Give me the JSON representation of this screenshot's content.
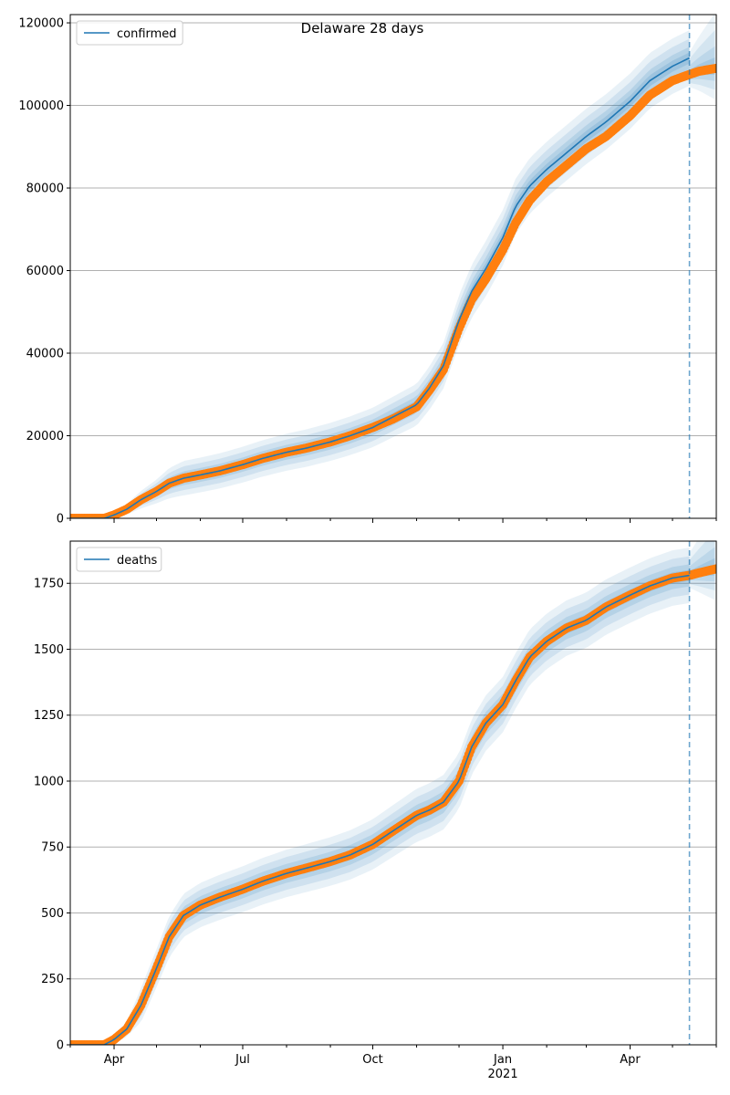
{
  "figure": {
    "title": "Delaware 28 days"
  },
  "chart_data": [
    {
      "type": "line",
      "legend": {
        "label": "confirmed",
        "placement": "upper-left"
      },
      "x_type": "date",
      "xlim": [
        "2020-03-01",
        "2021-06-01"
      ],
      "ylim": [
        0,
        122000
      ],
      "yticks": [
        0,
        20000,
        40000,
        60000,
        80000,
        100000,
        120000
      ],
      "grid": "horizontal",
      "forecast_start": "2021-05-13",
      "observed": {
        "x": [
          "2020-03-01",
          "2020-03-25",
          "2020-04-01",
          "2020-04-10",
          "2020-04-20",
          "2020-05-01",
          "2020-05-10",
          "2020-05-20",
          "2020-06-01",
          "2020-06-15",
          "2020-07-01",
          "2020-07-15",
          "2020-08-01",
          "2020-08-15",
          "2020-09-01",
          "2020-09-15",
          "2020-10-01",
          "2020-10-15",
          "2020-11-01",
          "2020-11-10",
          "2020-11-20",
          "2020-12-01",
          "2020-12-10",
          "2020-12-20",
          "2021-01-01",
          "2021-01-10",
          "2021-01-20",
          "2021-02-01",
          "2021-02-15",
          "2021-03-01",
          "2021-03-15",
          "2021-04-01",
          "2021-04-15",
          "2021-05-01",
          "2021-05-13",
          "2021-05-20",
          "2021-06-01"
        ],
        "y": [
          0,
          0,
          800,
          2200,
          4500,
          6500,
          8500,
          9700,
          10500,
          11500,
          13000,
          14500,
          16000,
          17000,
          18500,
          20000,
          22000,
          24000,
          27000,
          31000,
          36000,
          46000,
          53000,
          58000,
          65000,
          71500,
          77000,
          81500,
          85500,
          89500,
          92500,
          97500,
          102500,
          106000,
          107500,
          108300,
          109000
        ]
      },
      "series": [
        {
          "name": "confirmed",
          "color": "#1f77b4",
          "x": [
            "2020-03-01",
            "2020-03-25",
            "2020-04-01",
            "2020-04-10",
            "2020-04-20",
            "2020-05-01",
            "2020-05-10",
            "2020-05-20",
            "2020-06-01",
            "2020-06-15",
            "2020-07-01",
            "2020-07-15",
            "2020-08-01",
            "2020-08-15",
            "2020-09-01",
            "2020-09-15",
            "2020-10-01",
            "2020-10-15",
            "2020-11-01",
            "2020-11-10",
            "2020-11-20",
            "2020-12-01",
            "2020-12-10",
            "2020-12-20",
            "2021-01-01",
            "2021-01-10",
            "2021-01-20",
            "2021-02-01",
            "2021-02-15",
            "2021-03-01",
            "2021-03-15",
            "2021-04-01",
            "2021-04-15",
            "2021-05-01",
            "2021-05-13"
          ],
          "y": [
            0,
            0,
            800,
            2200,
            4500,
            6500,
            8500,
            9700,
            10500,
            11500,
            13000,
            14500,
            16000,
            17000,
            18500,
            20000,
            22000,
            24500,
            27500,
            31500,
            37000,
            48000,
            55000,
            60500,
            68000,
            75500,
            80500,
            84500,
            88500,
            92500,
            96000,
            101000,
            106000,
            109500,
            111500
          ]
        }
      ],
      "band_color": "#1f77b4"
    },
    {
      "type": "line",
      "legend": {
        "label": "deaths",
        "placement": "upper-left"
      },
      "x_type": "date",
      "xlim": [
        "2020-03-01",
        "2021-06-01"
      ],
      "ylim": [
        0,
        1910
      ],
      "yticks": [
        0,
        250,
        500,
        750,
        1000,
        1250,
        1500,
        1750
      ],
      "grid": "horizontal",
      "forecast_start": "2021-05-13",
      "xticks_major": [
        {
          "date": "2020-04-01",
          "label": "Apr"
        },
        {
          "date": "2020-07-01",
          "label": "Jul"
        },
        {
          "date": "2020-10-01",
          "label": "Oct"
        },
        {
          "date": "2021-01-01",
          "label": "Jan",
          "sublabel": "2021"
        },
        {
          "date": "2021-04-01",
          "label": "Apr"
        }
      ],
      "observed": {
        "x": [
          "2020-03-01",
          "2020-03-25",
          "2020-04-01",
          "2020-04-10",
          "2020-04-20",
          "2020-05-01",
          "2020-05-10",
          "2020-05-20",
          "2020-06-01",
          "2020-06-15",
          "2020-07-01",
          "2020-07-15",
          "2020-08-01",
          "2020-08-15",
          "2020-09-01",
          "2020-09-15",
          "2020-10-01",
          "2020-10-15",
          "2020-11-01",
          "2020-11-10",
          "2020-11-20",
          "2020-12-01",
          "2020-12-10",
          "2020-12-20",
          "2021-01-01",
          "2021-01-10",
          "2021-01-20",
          "2021-02-01",
          "2021-02-15",
          "2021-03-01",
          "2021-03-15",
          "2021-04-01",
          "2021-04-15",
          "2021-05-01",
          "2021-05-13",
          "2021-05-20",
          "2021-06-01"
        ],
        "y": [
          0,
          0,
          20,
          60,
          150,
          290,
          410,
          490,
          530,
          560,
          590,
          620,
          650,
          670,
          695,
          720,
          760,
          810,
          870,
          890,
          920,
          1000,
          1130,
          1220,
          1290,
          1380,
          1470,
          1530,
          1580,
          1610,
          1660,
          1705,
          1740,
          1770,
          1780,
          1790,
          1805
        ]
      },
      "series": [
        {
          "name": "deaths",
          "color": "#1f77b4",
          "x": [
            "2020-03-01",
            "2020-03-25",
            "2020-04-01",
            "2020-04-10",
            "2020-04-20",
            "2020-05-01",
            "2020-05-10",
            "2020-05-20",
            "2020-06-01",
            "2020-06-15",
            "2020-07-01",
            "2020-07-15",
            "2020-08-01",
            "2020-08-15",
            "2020-09-01",
            "2020-09-15",
            "2020-10-01",
            "2020-10-15",
            "2020-11-01",
            "2020-11-10",
            "2020-11-20",
            "2020-12-01",
            "2020-12-10",
            "2020-12-20",
            "2021-01-01",
            "2021-01-10",
            "2021-01-20",
            "2021-02-01",
            "2021-02-15",
            "2021-03-01",
            "2021-03-15",
            "2021-04-01",
            "2021-04-15",
            "2021-05-01",
            "2021-05-13"
          ],
          "y": [
            0,
            0,
            20,
            60,
            150,
            290,
            410,
            490,
            530,
            560,
            590,
            620,
            650,
            670,
            695,
            720,
            760,
            810,
            870,
            890,
            920,
            1000,
            1130,
            1220,
            1290,
            1380,
            1470,
            1530,
            1580,
            1610,
            1660,
            1705,
            1740,
            1770,
            1780
          ]
        }
      ],
      "band_color": "#1f77b4"
    }
  ]
}
